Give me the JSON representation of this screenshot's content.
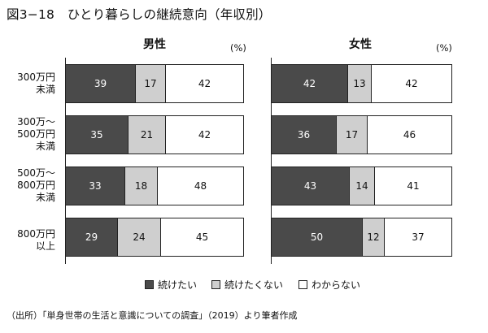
{
  "title": "図3−18　ひとり暮らしの継続意向（年収別）",
  "source": "（出所）「単身世帯の生活と意識についての調査」（2019）より筆者作成",
  "colors": {
    "continue": "#4a4a4a",
    "continue_not": "#cfcfcf",
    "dont_know": "#ffffff"
  },
  "chart_data": [
    {
      "type": "bar",
      "orientation": "horizontal",
      "stacked": true,
      "title": "男性",
      "unit": "(%)",
      "categories": [
        "300万円\n未満",
        "300万〜\n500万円\n未満",
        "500万〜\n800万円\n未満",
        "800万円\n以上"
      ],
      "series": [
        {
          "name": "続けたい",
          "values": [
            39,
            35,
            33,
            29
          ]
        },
        {
          "name": "続けたくない",
          "values": [
            17,
            21,
            18,
            24
          ]
        },
        {
          "name": "わからない",
          "values": [
            42,
            42,
            48,
            45
          ]
        }
      ],
      "xlim": [
        0,
        100
      ],
      "legend": "bottom"
    },
    {
      "type": "bar",
      "orientation": "horizontal",
      "stacked": true,
      "title": "女性",
      "unit": "(%)",
      "categories": [
        "300万円\n未満",
        "300万〜\n500万円\n未満",
        "500万〜\n800万円\n未満",
        "800万円\n以上"
      ],
      "series": [
        {
          "name": "続けたい",
          "values": [
            42,
            36,
            43,
            50
          ]
        },
        {
          "name": "続けたくない",
          "values": [
            13,
            17,
            14,
            12
          ]
        },
        {
          "name": "わからない",
          "values": [
            42,
            46,
            41,
            37
          ]
        }
      ],
      "xlim": [
        0,
        100
      ],
      "legend": "bottom"
    }
  ]
}
